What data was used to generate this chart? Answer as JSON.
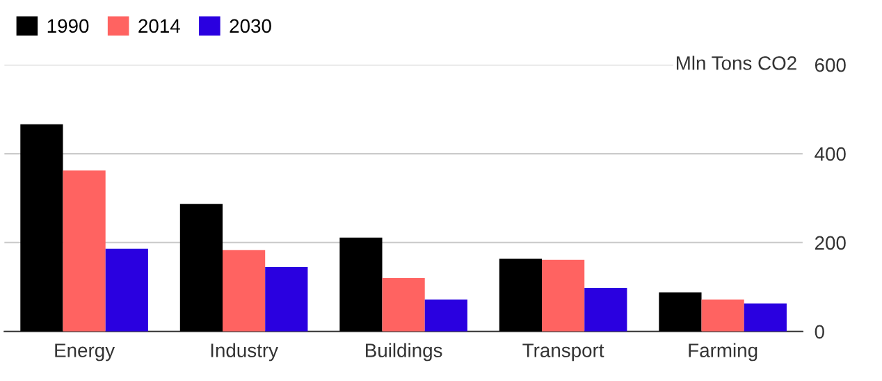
{
  "chart_data": {
    "type": "bar",
    "ylabel": "Mln Tons CO2",
    "categories": [
      "Energy",
      "Industry",
      "Buildings",
      "Transport",
      "Farming"
    ],
    "series": [
      {
        "name": "1990",
        "color": "#000000",
        "values": [
          466,
          287,
          211,
          164,
          88
        ]
      },
      {
        "name": "2014",
        "color": "#ff6361",
        "values": [
          362,
          183,
          120,
          161,
          72
        ]
      },
      {
        "name": "2030",
        "color": "#2a00e0",
        "values": [
          186,
          145,
          72,
          98,
          63
        ]
      }
    ],
    "ylim": [
      0,
      600
    ],
    "yticks": [
      0,
      200,
      400,
      600
    ],
    "grid": "y",
    "legend": "top left"
  }
}
